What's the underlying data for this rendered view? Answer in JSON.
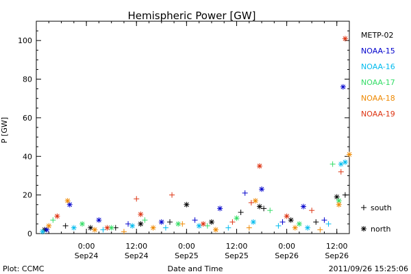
{
  "chart_data": {
    "type": "scatter",
    "title": "Hemispheric Power [GW]",
    "xlabel": "Date and Time",
    "ylabel": "P [GW]",
    "ylim": [
      0,
      110
    ],
    "xlim": [
      "2011-09-23 12:00",
      "2011-09-26 15:00"
    ],
    "yticks": [
      0,
      20,
      40,
      60,
      80,
      100
    ],
    "xticks": [
      {
        "x": "2011-09-24 00:00",
        "line1": "0:00",
        "line2": "Sep24"
      },
      {
        "x": "2011-09-24 12:00",
        "line1": "12:00",
        "line2": "Sep24"
      },
      {
        "x": "2011-09-25 00:00",
        "line1": "0:00",
        "line2": "Sep25"
      },
      {
        "x": "2011-09-25 12:00",
        "line1": "12:00",
        "line2": "Sep25"
      },
      {
        "x": "2011-09-26 00:00",
        "line1": "0:00",
        "line2": "Sep26"
      },
      {
        "x": "2011-09-26 12:00",
        "line1": "12:00",
        "line2": "Sep26"
      }
    ],
    "grid": false,
    "legend_position": "right",
    "marker_legend": [
      {
        "symbol": "+",
        "label": "south"
      },
      {
        "symbol": "*",
        "label": "north"
      }
    ],
    "series": [
      {
        "name": "METP-02",
        "color": "#000000",
        "points": [
          {
            "x": "2011-09-23 14:00",
            "y": 2,
            "m": "*"
          },
          {
            "x": "2011-09-23 19:00",
            "y": 4,
            "m": "+"
          },
          {
            "x": "2011-09-24 01:00",
            "y": 3,
            "m": "*"
          },
          {
            "x": "2011-09-24 07:00",
            "y": 3,
            "m": "+"
          },
          {
            "x": "2011-09-24 13:00",
            "y": 5,
            "m": "*"
          },
          {
            "x": "2011-09-24 20:00",
            "y": 6,
            "m": "+"
          },
          {
            "x": "2011-09-25 00:00",
            "y": 15,
            "m": "*"
          },
          {
            "x": "2011-09-25 06:00",
            "y": 6,
            "m": "*"
          },
          {
            "x": "2011-09-25 13:00",
            "y": 11,
            "m": "+"
          },
          {
            "x": "2011-09-25 17:30",
            "y": 14,
            "m": "*"
          },
          {
            "x": "2011-09-25 18:30",
            "y": 13,
            "m": "+"
          },
          {
            "x": "2011-09-26 01:00",
            "y": 7,
            "m": "*"
          },
          {
            "x": "2011-09-26 07:00",
            "y": 6,
            "m": "+"
          },
          {
            "x": "2011-09-26 12:00",
            "y": 19,
            "m": "*"
          },
          {
            "x": "2011-09-26 14:00",
            "y": 20,
            "m": "+"
          }
        ]
      },
      {
        "name": "NOAA-15",
        "color": "#0000cc",
        "points": [
          {
            "x": "2011-09-23 14:30",
            "y": 2,
            "m": "*"
          },
          {
            "x": "2011-09-23 20:00",
            "y": 15,
            "m": "*"
          },
          {
            "x": "2011-09-24 03:00",
            "y": 7,
            "m": "*"
          },
          {
            "x": "2011-09-24 10:00",
            "y": 5,
            "m": "+"
          },
          {
            "x": "2011-09-24 18:00",
            "y": 6,
            "m": "*"
          },
          {
            "x": "2011-09-25 02:00",
            "y": 7,
            "m": "+"
          },
          {
            "x": "2011-09-25 08:00",
            "y": 13,
            "m": "*"
          },
          {
            "x": "2011-09-25 14:00",
            "y": 21,
            "m": "+"
          },
          {
            "x": "2011-09-25 18:00",
            "y": 23,
            "m": "*"
          },
          {
            "x": "2011-09-25 23:00",
            "y": 6,
            "m": "+"
          },
          {
            "x": "2011-09-26 04:00",
            "y": 14,
            "m": "*"
          },
          {
            "x": "2011-09-26 09:00",
            "y": 7,
            "m": "+"
          },
          {
            "x": "2011-09-26 13:30",
            "y": 76,
            "m": "*"
          }
        ]
      },
      {
        "name": "NOAA-16",
        "color": "#00bbee",
        "points": [
          {
            "x": "2011-09-23 13:30",
            "y": 1,
            "m": "*"
          },
          {
            "x": "2011-09-23 21:00",
            "y": 3,
            "m": "*"
          },
          {
            "x": "2011-09-24 04:00",
            "y": 2,
            "m": "+"
          },
          {
            "x": "2011-09-24 11:00",
            "y": 4,
            "m": "*"
          },
          {
            "x": "2011-09-24 19:00",
            "y": 3,
            "m": "+"
          },
          {
            "x": "2011-09-25 03:00",
            "y": 4,
            "m": "*"
          },
          {
            "x": "2011-09-25 10:00",
            "y": 3,
            "m": "+"
          },
          {
            "x": "2011-09-25 16:00",
            "y": 6,
            "m": "*"
          },
          {
            "x": "2011-09-25 22:00",
            "y": 4,
            "m": "+"
          },
          {
            "x": "2011-09-26 05:00",
            "y": 3,
            "m": "*"
          },
          {
            "x": "2011-09-26 10:00",
            "y": 5,
            "m": "+"
          },
          {
            "x": "2011-09-26 13:00",
            "y": 36,
            "m": "*"
          },
          {
            "x": "2011-09-26 14:00",
            "y": 37,
            "m": "*"
          }
        ]
      },
      {
        "name": "NOAA-17",
        "color": "#33dd66",
        "points": [
          {
            "x": "2011-09-23 16:00",
            "y": 7,
            "m": "+"
          },
          {
            "x": "2011-09-23 23:00",
            "y": 5,
            "m": "*"
          },
          {
            "x": "2011-09-24 06:00",
            "y": 3,
            "m": "*"
          },
          {
            "x": "2011-09-24 14:00",
            "y": 7,
            "m": "+"
          },
          {
            "x": "2011-09-24 22:00",
            "y": 5,
            "m": "*"
          },
          {
            "x": "2011-09-25 05:00",
            "y": 4,
            "m": "+"
          },
          {
            "x": "2011-09-25 12:00",
            "y": 8,
            "m": "*"
          },
          {
            "x": "2011-09-25 20:00",
            "y": 12,
            "m": "+"
          },
          {
            "x": "2011-09-26 03:00",
            "y": 5,
            "m": "*"
          },
          {
            "x": "2011-09-26 11:00",
            "y": 36,
            "m": "+"
          },
          {
            "x": "2011-09-26 12:30",
            "y": 17,
            "m": "*"
          }
        ]
      },
      {
        "name": "NOAA-18",
        "color": "#ee8800",
        "points": [
          {
            "x": "2011-09-23 15:00",
            "y": 4,
            "m": "*"
          },
          {
            "x": "2011-09-23 19:30",
            "y": 17,
            "m": "*"
          },
          {
            "x": "2011-09-24 02:00",
            "y": 2,
            "m": "*"
          },
          {
            "x": "2011-09-24 09:00",
            "y": 1,
            "m": "+"
          },
          {
            "x": "2011-09-24 16:00",
            "y": 3,
            "m": "*"
          },
          {
            "x": "2011-09-24 23:00",
            "y": 5,
            "m": "+"
          },
          {
            "x": "2011-09-25 07:00",
            "y": 2,
            "m": "*"
          },
          {
            "x": "2011-09-25 15:00",
            "y": 3,
            "m": "+"
          },
          {
            "x": "2011-09-25 16:30",
            "y": 17,
            "m": "*"
          },
          {
            "x": "2011-09-26 02:00",
            "y": 3,
            "m": "*"
          },
          {
            "x": "2011-09-26 08:00",
            "y": 2,
            "m": "+"
          },
          {
            "x": "2011-09-26 12:30",
            "y": 15,
            "m": "*"
          },
          {
            "x": "2011-09-26 15:00",
            "y": 41,
            "m": "*"
          }
        ]
      },
      {
        "name": "NOAA-19",
        "color": "#dd3311",
        "points": [
          {
            "x": "2011-09-23 17:00",
            "y": 9,
            "m": "*"
          },
          {
            "x": "2011-09-24 05:00",
            "y": 3,
            "m": "*"
          },
          {
            "x": "2011-09-24 12:00",
            "y": 18,
            "m": "+"
          },
          {
            "x": "2011-09-24 13:00",
            "y": 10,
            "m": "*"
          },
          {
            "x": "2011-09-24 20:30",
            "y": 20,
            "m": "+"
          },
          {
            "x": "2011-09-25 04:00",
            "y": 5,
            "m": "*"
          },
          {
            "x": "2011-09-25 11:00",
            "y": 6,
            "m": "+"
          },
          {
            "x": "2011-09-25 15:30",
            "y": 16,
            "m": "+"
          },
          {
            "x": "2011-09-25 17:30",
            "y": 35,
            "m": "*"
          },
          {
            "x": "2011-09-26 00:00",
            "y": 9,
            "m": "*"
          },
          {
            "x": "2011-09-26 06:00",
            "y": 12,
            "m": "+"
          },
          {
            "x": "2011-09-26 13:00",
            "y": 32,
            "m": "+"
          },
          {
            "x": "2011-09-26 14:00",
            "y": 101,
            "m": "*"
          }
        ]
      }
    ]
  },
  "footer": {
    "plot_credit": "Plot: CCMC",
    "timestamp": "2011/09/26 15:25:06"
  }
}
